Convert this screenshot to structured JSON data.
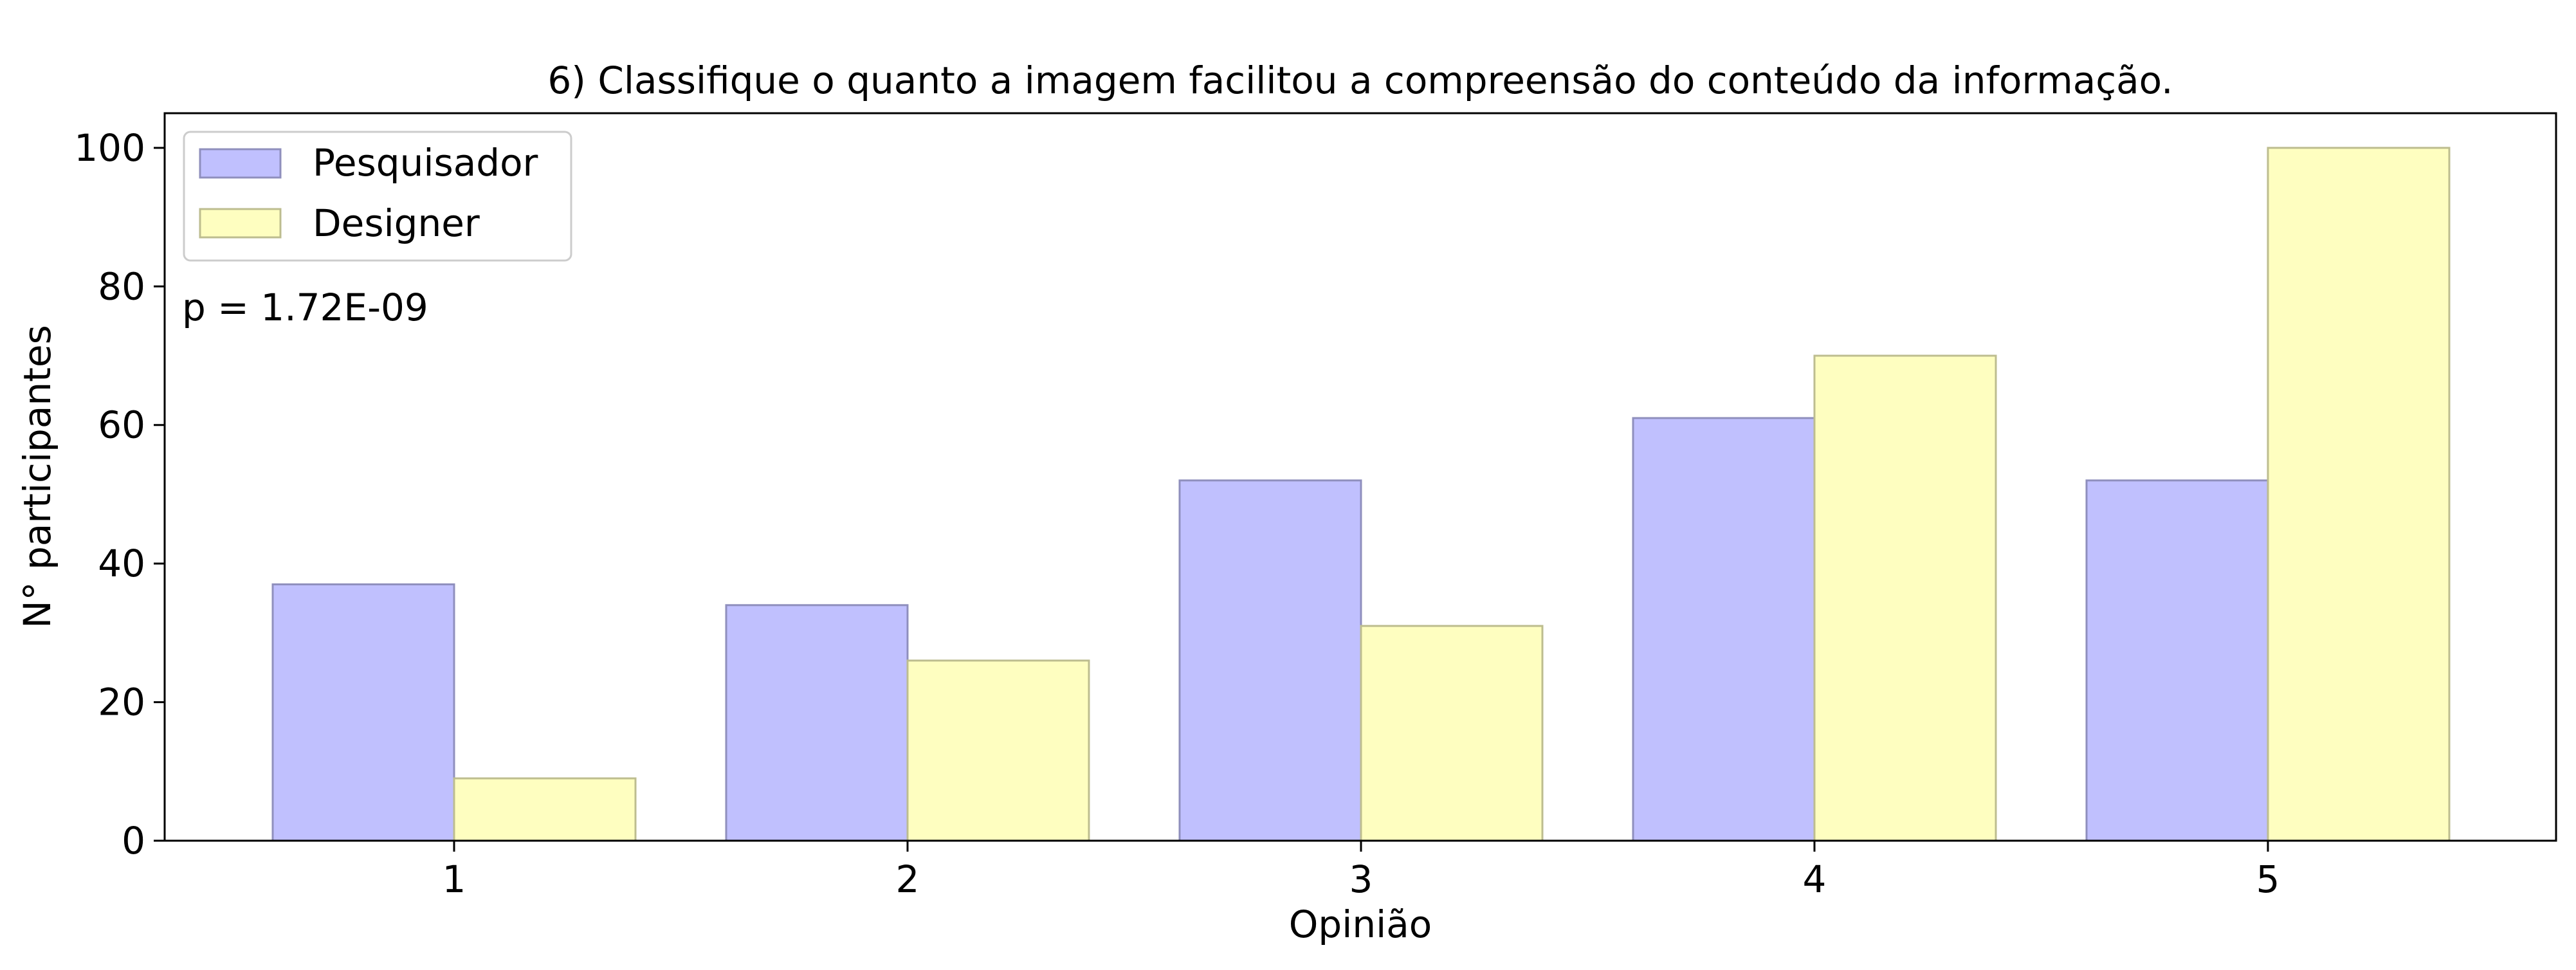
{
  "chart_data": {
    "type": "bar",
    "title": "6) Classifique o quanto a imagem facilitou a compreensão do conteúdo da informação.",
    "xlabel": "Opinião",
    "ylabel": "N° participantes",
    "categories": [
      "1",
      "2",
      "3",
      "4",
      "5"
    ],
    "series": [
      {
        "name": "Pesquisador",
        "values": [
          37,
          34,
          52,
          61,
          52
        ],
        "color": "#c0c0fe",
        "edge_color": "#8f8fbd"
      },
      {
        "name": "Designer",
        "values": [
          9,
          26,
          31,
          70,
          100
        ],
        "color": "#fefec0",
        "edge_color": "#bdbd8f"
      }
    ],
    "ylim": [
      0,
      105
    ],
    "yticks": [
      0,
      20,
      40,
      60,
      80,
      100
    ],
    "grid": false,
    "legend": {
      "position": "top-left"
    },
    "annotation": "p = 1.72E-09"
  }
}
